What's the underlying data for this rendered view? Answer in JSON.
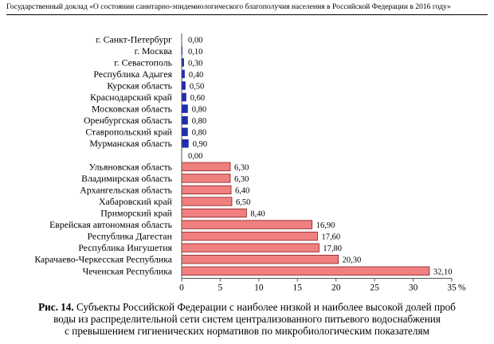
{
  "header": {
    "title": "Государственный доклад «О состоянии санитарно-эпидемиологического благополучия населения в Российской Федерации в 2016 году»"
  },
  "colors": {
    "low_bar": "#1f2bb0",
    "high_bar": "#f08080",
    "high_bar_border": "#8b1a1a",
    "axis": "#555555"
  },
  "chart_data": {
    "type": "bar",
    "orientation": "horizontal",
    "xlim": [
      0,
      35
    ],
    "x_ticks": [
      "0",
      "5",
      "10",
      "15",
      "20",
      "25",
      "30",
      "35"
    ],
    "x_unit": "%",
    "grid": false,
    "rows": [
      {
        "label": "г. Санкт-Петербург",
        "value": 0.0,
        "value_label": "0,00",
        "group": "low"
      },
      {
        "label": "г. Москва",
        "value": 0.1,
        "value_label": "0,10",
        "group": "low"
      },
      {
        "label": "г. Севастополь",
        "value": 0.3,
        "value_label": "0,30",
        "group": "low"
      },
      {
        "label": "Республика Адыгея",
        "value": 0.4,
        "value_label": "0,40",
        "group": "low"
      },
      {
        "label": "Курская область",
        "value": 0.5,
        "value_label": "0,50",
        "group": "low"
      },
      {
        "label": "Краснодарский край",
        "value": 0.6,
        "value_label": "0,60",
        "group": "low"
      },
      {
        "label": "Московская область",
        "value": 0.8,
        "value_label": "0,80",
        "group": "low"
      },
      {
        "label": "Оренбургская область",
        "value": 0.8,
        "value_label": "0,80",
        "group": "low"
      },
      {
        "label": "Ставропольский край",
        "value": 0.8,
        "value_label": "0,80",
        "group": "low"
      },
      {
        "label": "Мурманская область",
        "value": 0.9,
        "value_label": "0,90",
        "group": "low"
      },
      {
        "label": "",
        "value": 0.0,
        "value_label": "0,00",
        "group": "gap"
      },
      {
        "label": "Ульяновская область",
        "value": 6.3,
        "value_label": "6,30",
        "group": "high"
      },
      {
        "label": "Владимирская область",
        "value": 6.3,
        "value_label": "6,30",
        "group": "high"
      },
      {
        "label": "Архангельская область",
        "value": 6.4,
        "value_label": "6,40",
        "group": "high"
      },
      {
        "label": "Хабаровский край",
        "value": 6.5,
        "value_label": "6,50",
        "group": "high"
      },
      {
        "label": "Приморский край",
        "value": 8.4,
        "value_label": "8,40",
        "group": "high"
      },
      {
        "label": "Еврейская автономная область",
        "value": 16.9,
        "value_label": "16,90",
        "group": "high"
      },
      {
        "label": "Республика Дагестан",
        "value": 17.6,
        "value_label": "17,60",
        "group": "high"
      },
      {
        "label": "Республика Ингушетия",
        "value": 17.8,
        "value_label": "17,80",
        "group": "high"
      },
      {
        "label": "Карачаево-Черкесская Республика",
        "value": 20.3,
        "value_label": "20,30",
        "group": "high"
      },
      {
        "label": "Чеченская Республика",
        "value": 32.1,
        "value_label": "32,10",
        "group": "high"
      }
    ]
  },
  "caption": {
    "prefix": "Рис. 14.",
    "line1": "Субъекты Российской Федерации с наиболее низкой и наиболее высокой долей проб",
    "line2": "воды из распределительной сети систем централизованного питьевого водоснабжения",
    "line3": "с превышением гигиенических нормативов по микробиологическим показателям"
  }
}
